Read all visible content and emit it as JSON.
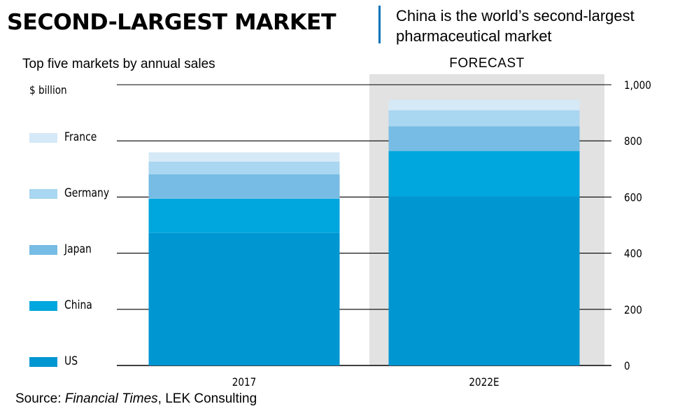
{
  "header": {
    "title": "SECOND-LARGEST MARKET",
    "subtitle_line1": "China is the world’s second-largest",
    "subtitle_line2": "pharmaceutical market"
  },
  "source": {
    "prefix": "Source: ",
    "publication": "Financial Times",
    "suffix": ", LEK Consulting"
  },
  "colors": {
    "us": "#0096d2",
    "china": "#00a6de",
    "japan": "#76bce4",
    "germany": "#a9d6f0",
    "france": "#d5e9f7",
    "forecast_band": "#e2e2e2",
    "headline_rule": "#0073b7"
  },
  "chart_data": {
    "type": "bar",
    "stacked": true,
    "title": "SECOND-LARGEST MARKET",
    "subtitle": "Top five markets by annual sales",
    "ylabel": "$ billion",
    "categories": [
      "2017",
      "2022E"
    ],
    "forecast_label": "FORECAST",
    "forecast_categories": [
      "2022E"
    ],
    "ylim": [
      0,
      1000
    ],
    "yticks": [
      0,
      200,
      400,
      600,
      800,
      1000
    ],
    "ytick_labels": [
      "0",
      "200",
      "400",
      "600",
      "800",
      "1,000"
    ],
    "y_axis_position": "right",
    "grid": true,
    "legend_position": "left",
    "series": [
      {
        "name": "US",
        "color_key": "us",
        "values": [
          472,
          602
        ]
      },
      {
        "name": "China",
        "color_key": "china",
        "values": [
          122,
          162
        ]
      },
      {
        "name": "Japan",
        "color_key": "japan",
        "values": [
          87,
          88
        ]
      },
      {
        "name": "Germany",
        "color_key": "germany",
        "values": [
          45,
          57
        ]
      },
      {
        "name": "France",
        "color_key": "france",
        "values": [
          33,
          38
        ]
      }
    ]
  }
}
